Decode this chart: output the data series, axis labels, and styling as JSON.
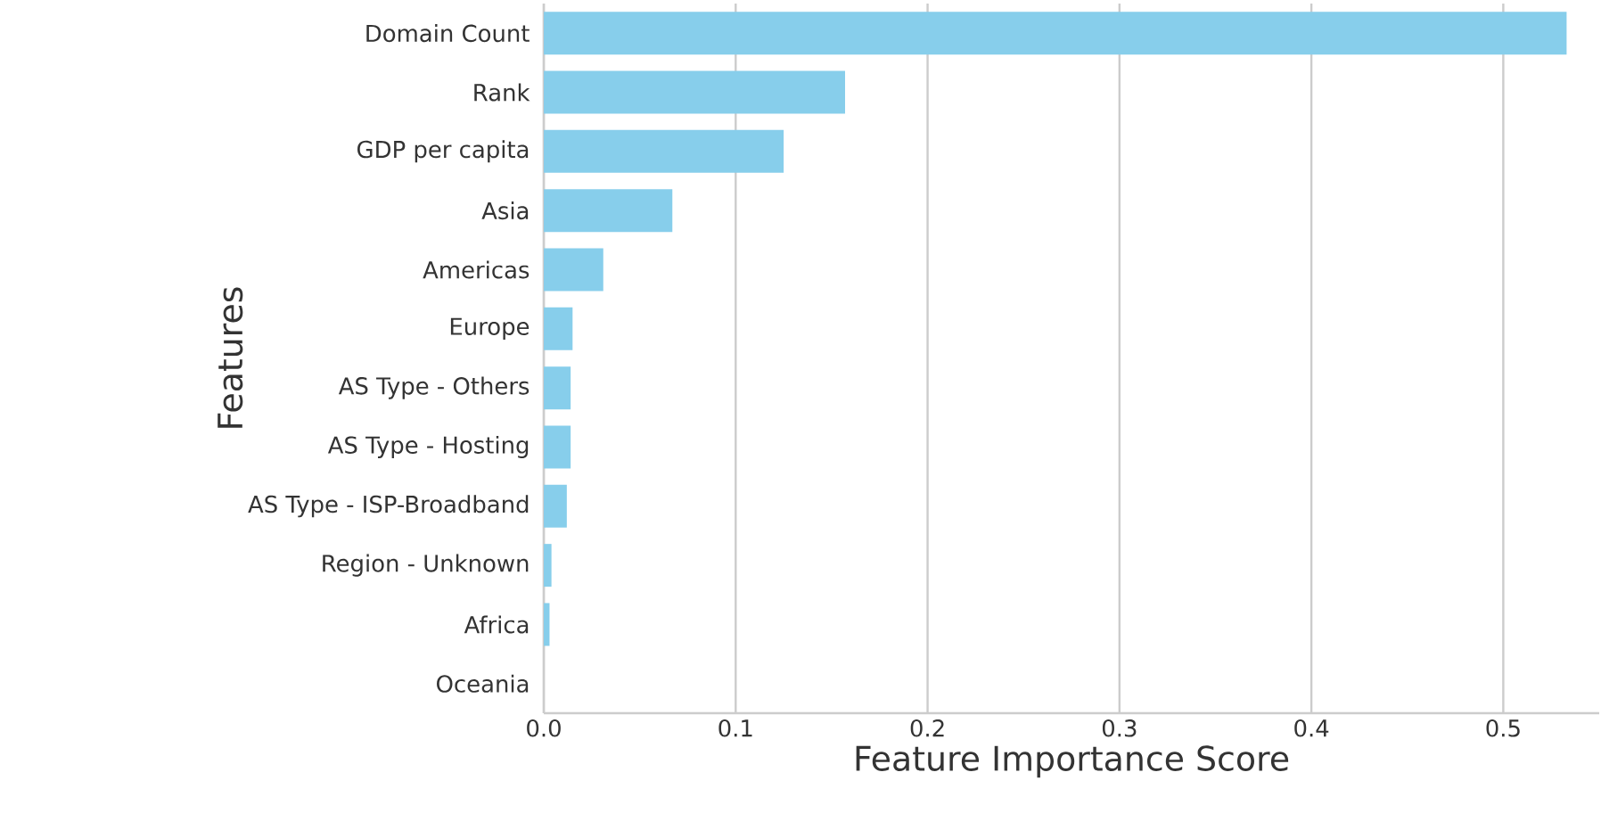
{
  "chart_data": {
    "type": "bar",
    "orientation": "horizontal",
    "xlabel": "Feature Importance Score",
    "ylabel": "Features",
    "categories": [
      "Domain Count",
      "Rank",
      "GDP per capita",
      "Asia",
      "Americas",
      "Europe",
      "AS Type - Others",
      "AS Type - Hosting",
      "AS Type - ISP-Broadband",
      "Region - Unknown",
      "Africa",
      "Oceania"
    ],
    "values": [
      0.533,
      0.157,
      0.125,
      0.067,
      0.031,
      0.015,
      0.014,
      0.014,
      0.012,
      0.004,
      0.003,
      0.0
    ],
    "color": "#87ceeb",
    "xlim": [
      0,
      0.55
    ],
    "xticks": [
      {
        "value": 0,
        "label": "0.0"
      },
      0.1,
      0.2,
      0.3,
      0.4,
      0.5
    ],
    "grid": "x"
  }
}
